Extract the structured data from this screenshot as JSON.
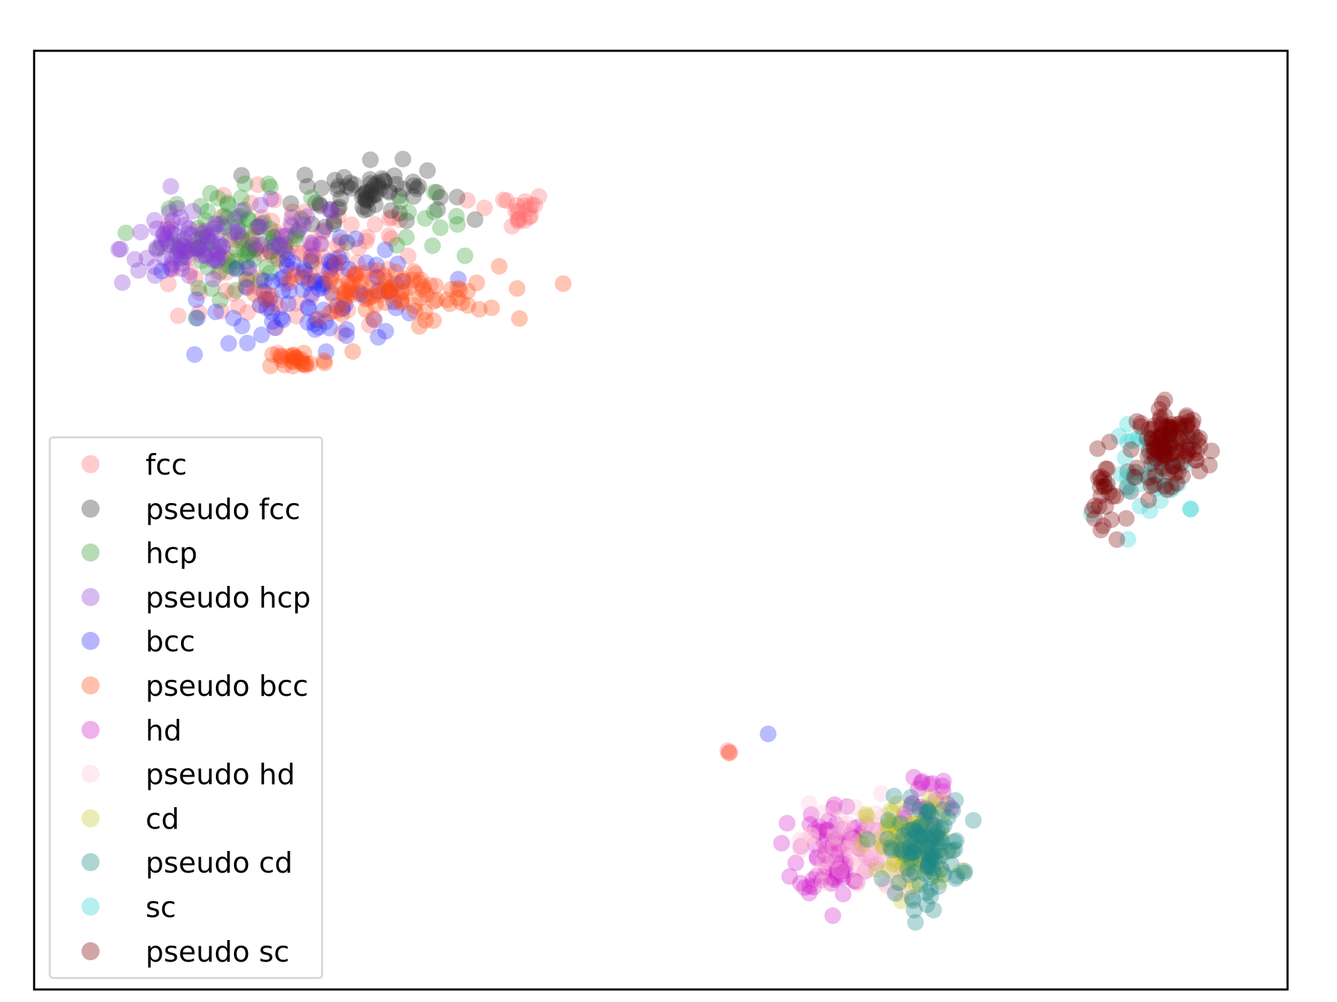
{
  "chart_data": {
    "type": "scatter",
    "title": "",
    "xlabel": "",
    "ylabel": "",
    "xlim": [
      0,
      100
    ],
    "ylim": [
      0,
      100
    ],
    "grid": false,
    "axis_ticks": false,
    "legend_placement": "lower-left",
    "series": [
      {
        "name": "fcc",
        "color": "#ff6b6b",
        "clusters": [
          {
            "cx": 21,
            "cy": 77,
            "sx": 10,
            "sy": 7,
            "n": 120
          },
          {
            "cx": 38,
            "cy": 83,
            "sx": 3,
            "sy": 2,
            "n": 20
          },
          {
            "cx": 55.5,
            "cy": 25.5,
            "sx": 0.3,
            "sy": 0.4,
            "n": 2
          }
        ]
      },
      {
        "name": "pseudo fcc",
        "color": "#333333",
        "clusters": [
          {
            "cx": 27,
            "cy": 85,
            "sx": 6,
            "sy": 3,
            "n": 70
          },
          {
            "cx": 18,
            "cy": 80,
            "sx": 5,
            "sy": 3,
            "n": 12
          },
          {
            "cx": 87.5,
            "cy": 53,
            "sx": 3,
            "sy": 5,
            "n": 5
          }
        ]
      },
      {
        "name": "hcp",
        "color": "#2e9b2e",
        "clusters": [
          {
            "cx": 16,
            "cy": 80,
            "sx": 6,
            "sy": 5,
            "n": 80
          },
          {
            "cx": 31,
            "cy": 82,
            "sx": 3,
            "sy": 3,
            "n": 12
          }
        ]
      },
      {
        "name": "pseudo hcp",
        "color": "#8a3bd6",
        "clusters": [
          {
            "cx": 12,
            "cy": 79,
            "sx": 5,
            "sy": 4,
            "n": 80
          },
          {
            "cx": 20,
            "cy": 80,
            "sx": 5,
            "sy": 4,
            "n": 30
          }
        ]
      },
      {
        "name": "bcc",
        "color": "#2b2bff",
        "clusters": [
          {
            "cx": 23,
            "cy": 74,
            "sx": 9,
            "sy": 5,
            "n": 90
          },
          {
            "cx": 58.5,
            "cy": 27,
            "sx": 0.3,
            "sy": 0.3,
            "n": 1
          }
        ]
      },
      {
        "name": "pseudo bcc",
        "color": "#ff4a14",
        "clusters": [
          {
            "cx": 28,
            "cy": 74,
            "sx": 9,
            "sy": 3,
            "n": 90
          },
          {
            "cx": 21,
            "cy": 67,
            "sx": 2.5,
            "sy": 1.2,
            "n": 25
          },
          {
            "cx": 55.5,
            "cy": 25,
            "sx": 0.3,
            "sy": 0.3,
            "n": 1
          }
        ]
      },
      {
        "name": "hd",
        "color": "#d21fc9",
        "clusters": [
          {
            "cx": 64,
            "cy": 15,
            "sx": 3,
            "sy": 5,
            "n": 90
          },
          {
            "cx": 71,
            "cy": 20,
            "sx": 3,
            "sy": 4,
            "n": 20
          }
        ]
      },
      {
        "name": "pseudo hd",
        "color": "#ffc4d6",
        "clusters": [
          {
            "cx": 66,
            "cy": 15,
            "sx": 5,
            "sy": 5,
            "n": 80
          }
        ]
      },
      {
        "name": "cd",
        "color": "#c7c72b",
        "clusters": [
          {
            "cx": 70,
            "cy": 15,
            "sx": 3.5,
            "sy": 5,
            "n": 90
          }
        ]
      },
      {
        "name": "pseudo cd",
        "color": "#1b8585",
        "clusters": [
          {
            "cx": 71,
            "cy": 15,
            "sx": 3,
            "sy": 5,
            "n": 110
          }
        ]
      },
      {
        "name": "sc",
        "color": "#2fd2d2",
        "clusters": [
          {
            "cx": 90,
            "cy": 55,
            "sx": 4,
            "sy": 5,
            "n": 45
          }
        ]
      },
      {
        "name": "pseudo sc",
        "color": "#7a0000",
        "clusters": [
          {
            "cx": 90.5,
            "cy": 58,
            "sx": 2.5,
            "sy": 4,
            "n": 120
          },
          {
            "cx": 85.5,
            "cy": 52,
            "sx": 1.2,
            "sy": 5,
            "n": 25
          }
        ]
      }
    ]
  }
}
